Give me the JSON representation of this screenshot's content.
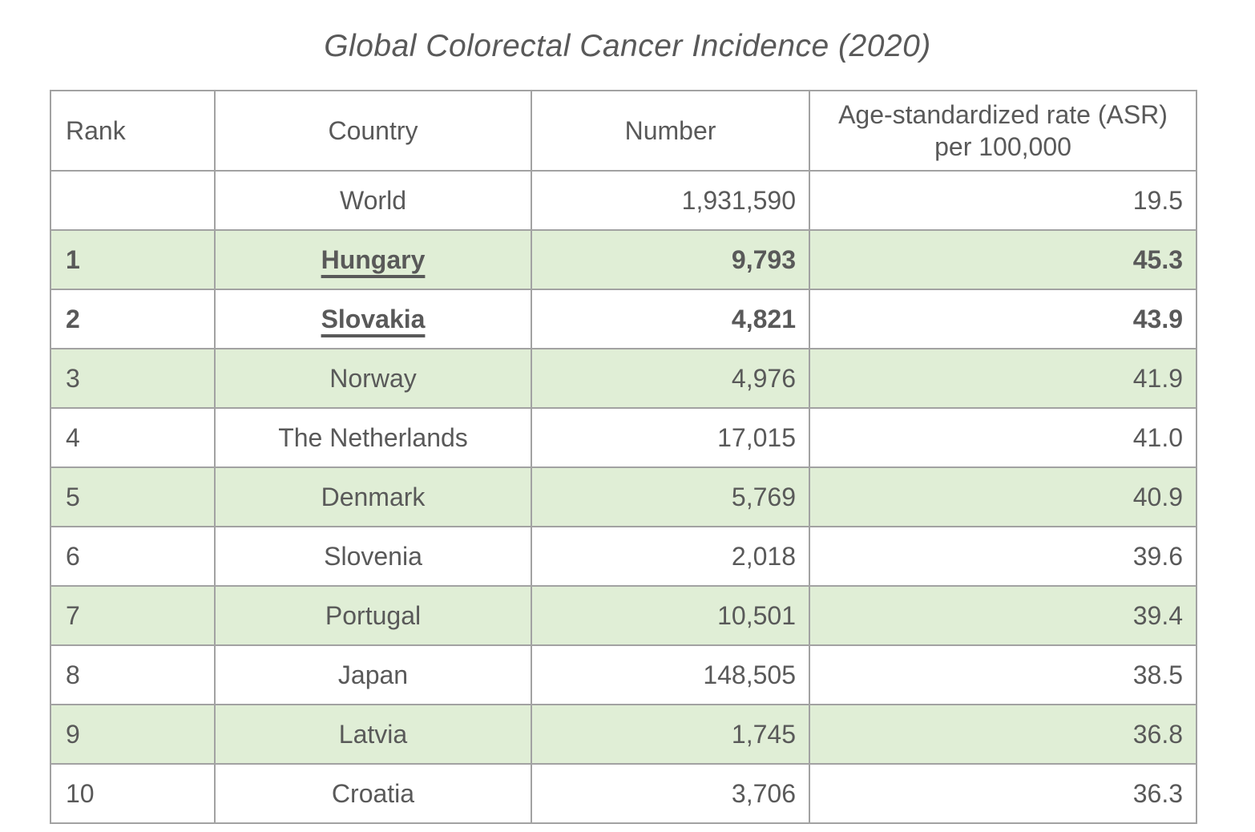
{
  "title": "Global Colorectal Cancer Incidence (2020)",
  "colors": {
    "row_shading": "#e0eed6",
    "border": "#a2a2a2",
    "text": "#595959",
    "background": "#ffffff"
  },
  "chart_data": {
    "type": "table",
    "title": "Global Colorectal Cancer Incidence (2020)",
    "columns": [
      {
        "label": "Rank"
      },
      {
        "label": "Country"
      },
      {
        "label": "Number"
      },
      {
        "label": "Age-standardized rate (ASR) per 100,000"
      }
    ],
    "rows": [
      {
        "rank": "",
        "country": "World",
        "number": "1,931,590",
        "asr": "19.5",
        "emphasis": false
      },
      {
        "rank": "1",
        "country": "Hungary",
        "number": "9,793",
        "asr": "45.3",
        "emphasis": true
      },
      {
        "rank": "2",
        "country": "Slovakia",
        "number": "4,821",
        "asr": "43.9",
        "emphasis": true
      },
      {
        "rank": "3",
        "country": "Norway",
        "number": "4,976",
        "asr": "41.9",
        "emphasis": false
      },
      {
        "rank": "4",
        "country": "The Netherlands",
        "number": "17,015",
        "asr": "41.0",
        "emphasis": false
      },
      {
        "rank": "5",
        "country": "Denmark",
        "number": "5,769",
        "asr": "40.9",
        "emphasis": false
      },
      {
        "rank": "6",
        "country": "Slovenia",
        "number": "2,018",
        "asr": "39.6",
        "emphasis": false
      },
      {
        "rank": "7",
        "country": "Portugal",
        "number": "10,501",
        "asr": "39.4",
        "emphasis": false
      },
      {
        "rank": "8",
        "country": "Japan",
        "number": "148,505",
        "asr": "38.5",
        "emphasis": false
      },
      {
        "rank": "9",
        "country": "Latvia",
        "number": "1,745",
        "asr": "36.8",
        "emphasis": false
      },
      {
        "rank": "10",
        "country": "Croatia",
        "number": "3,706",
        "asr": "36.3",
        "emphasis": false
      }
    ]
  }
}
